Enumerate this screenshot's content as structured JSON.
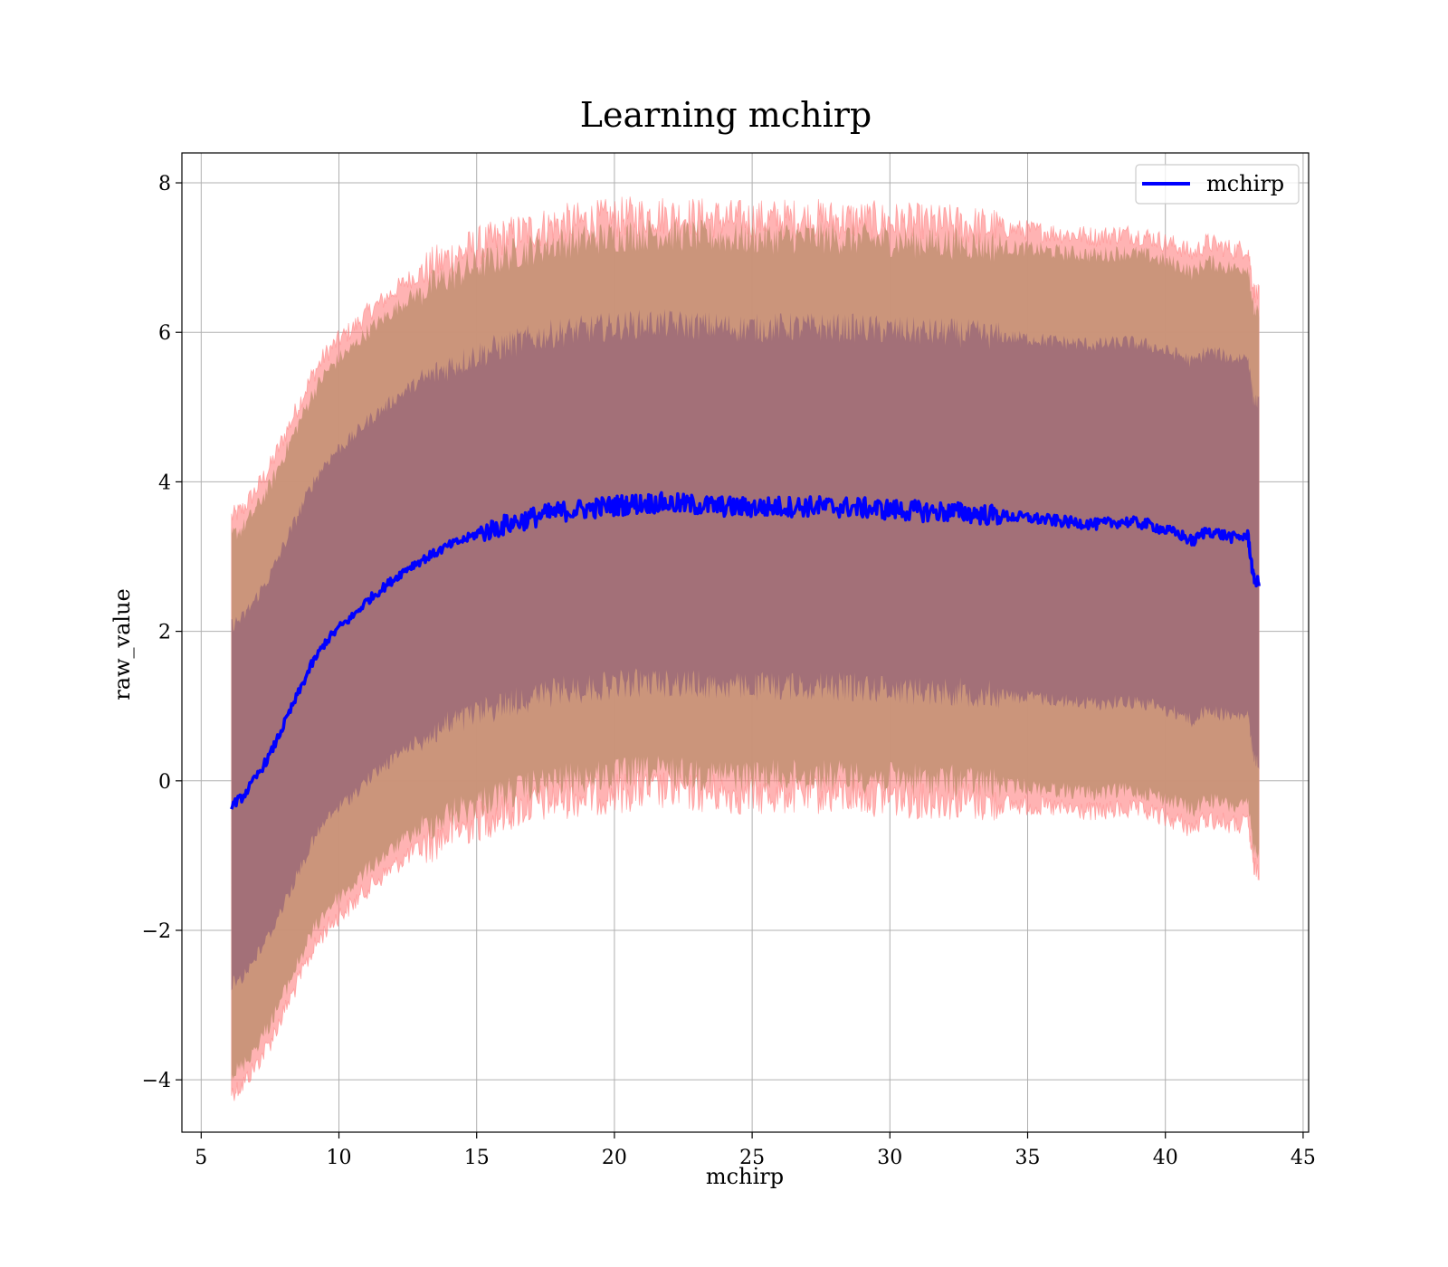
{
  "chart_data": {
    "type": "line",
    "title": "Learning mchirp",
    "xlabel": "mchirp",
    "ylabel": "raw_value",
    "xlim": [
      4.3,
      45.2
    ],
    "ylim": [
      -4.7,
      8.4
    ],
    "xticks": [
      5,
      10,
      15,
      20,
      25,
      30,
      35,
      40,
      45
    ],
    "yticks": [
      -4,
      -2,
      0,
      2,
      4,
      6,
      8
    ],
    "ytick_labels": [
      "−4",
      "−2",
      "0",
      "2",
      "4",
      "6",
      "8"
    ],
    "grid": true,
    "legend_position": "top-right",
    "line_color": "#0000ff",
    "band_colors": {
      "outer": "#ff8080",
      "middle": "#c89478",
      "inner": "#a06e78"
    },
    "series": [
      {
        "name": "mchirp",
        "x": [
          6.1,
          6.5,
          7.0,
          7.5,
          8.0,
          8.5,
          9.0,
          9.5,
          10.0,
          10.5,
          11.0,
          11.5,
          12.0,
          12.5,
          13.0,
          13.5,
          14.0,
          14.5,
          15.0,
          15.5,
          16.0,
          16.5,
          17.0,
          17.5,
          18.0,
          18.5,
          19.0,
          19.5,
          20.0,
          20.5,
          21.0,
          21.5,
          22.0,
          22.5,
          23.0,
          23.5,
          24.0,
          24.5,
          25.0,
          25.5,
          26.0,
          26.5,
          27.0,
          27.5,
          28.0,
          28.5,
          29.0,
          29.5,
          30.0,
          30.5,
          31.0,
          31.5,
          32.0,
          32.5,
          33.0,
          33.5,
          34.0,
          34.5,
          35.0,
          35.5,
          36.0,
          36.5,
          37.0,
          37.5,
          38.0,
          38.5,
          39.0,
          39.5,
          40.0,
          40.5,
          41.0,
          41.5,
          42.0,
          42.5,
          43.0,
          43.2,
          43.4
        ],
        "y": [
          -0.32,
          -0.22,
          0.05,
          0.35,
          0.75,
          1.15,
          1.55,
          1.85,
          2.05,
          2.2,
          2.4,
          2.55,
          2.7,
          2.85,
          2.95,
          3.05,
          3.15,
          3.22,
          3.3,
          3.36,
          3.42,
          3.47,
          3.52,
          3.56,
          3.6,
          3.62,
          3.64,
          3.66,
          3.68,
          3.7,
          3.71,
          3.72,
          3.71,
          3.7,
          3.69,
          3.68,
          3.67,
          3.66,
          3.66,
          3.66,
          3.67,
          3.67,
          3.67,
          3.67,
          3.66,
          3.66,
          3.65,
          3.64,
          3.63,
          3.62,
          3.61,
          3.6,
          3.6,
          3.59,
          3.58,
          3.56,
          3.55,
          3.53,
          3.52,
          3.5,
          3.48,
          3.46,
          3.45,
          3.43,
          3.45,
          3.47,
          3.45,
          3.42,
          3.35,
          3.3,
          3.2,
          3.35,
          3.3,
          3.25,
          3.28,
          2.7,
          2.65
        ],
        "band_inner": [
          2.4,
          2.4,
          2.4,
          2.4,
          2.4,
          2.4,
          2.4,
          2.4,
          2.4,
          2.4,
          2.4,
          2.4,
          2.4,
          2.4,
          2.4,
          2.4,
          2.4,
          2.4,
          2.4,
          2.4,
          2.4,
          2.4,
          2.4,
          2.4,
          2.4,
          2.4,
          2.4,
          2.4,
          2.4,
          2.4,
          2.4,
          2.4,
          2.4,
          2.4,
          2.4,
          2.4,
          2.4,
          2.4,
          2.4,
          2.4,
          2.4,
          2.4,
          2.4,
          2.4,
          2.4,
          2.4,
          2.4,
          2.4,
          2.4,
          2.4,
          2.4,
          2.4,
          2.4,
          2.4,
          2.4,
          2.4,
          2.4,
          2.4,
          2.4,
          2.4,
          2.4,
          2.4,
          2.4,
          2.4,
          2.4,
          2.4,
          2.4,
          2.4,
          2.4,
          2.4,
          2.4,
          2.4,
          2.4,
          2.4,
          2.4,
          2.4,
          2.4
        ],
        "band_middle": [
          3.6,
          3.6,
          3.6,
          3.6,
          3.6,
          3.6,
          3.6,
          3.6,
          3.6,
          3.6,
          3.6,
          3.6,
          3.6,
          3.6,
          3.6,
          3.6,
          3.6,
          3.6,
          3.6,
          3.6,
          3.6,
          3.6,
          3.6,
          3.6,
          3.6,
          3.6,
          3.6,
          3.6,
          3.6,
          3.6,
          3.6,
          3.6,
          3.6,
          3.6,
          3.6,
          3.6,
          3.6,
          3.6,
          3.6,
          3.6,
          3.6,
          3.6,
          3.6,
          3.6,
          3.6,
          3.6,
          3.6,
          3.6,
          3.6,
          3.6,
          3.6,
          3.6,
          3.6,
          3.6,
          3.6,
          3.6,
          3.6,
          3.6,
          3.6,
          3.6,
          3.6,
          3.6,
          3.6,
          3.6,
          3.6,
          3.6,
          3.6,
          3.6,
          3.6,
          3.6,
          3.6,
          3.6,
          3.6,
          3.6,
          3.6,
          3.6,
          3.6
        ],
        "band_outer": [
          3.85,
          3.85,
          3.85,
          3.85,
          3.85,
          3.85,
          3.85,
          3.85,
          3.85,
          3.85,
          3.85,
          3.85,
          3.85,
          3.85,
          3.85,
          3.85,
          3.85,
          3.85,
          3.85,
          3.85,
          3.85,
          3.85,
          3.85,
          3.85,
          3.85,
          3.85,
          3.85,
          3.85,
          3.85,
          3.85,
          3.85,
          3.85,
          3.85,
          3.85,
          3.85,
          3.85,
          3.85,
          3.85,
          3.85,
          3.85,
          3.85,
          3.85,
          3.85,
          3.85,
          3.85,
          3.85,
          3.85,
          3.85,
          3.85,
          3.85,
          3.85,
          3.85,
          3.85,
          3.85,
          3.85,
          3.85,
          3.85,
          3.85,
          3.85,
          3.85,
          3.85,
          3.85,
          3.85,
          3.85,
          3.85,
          3.85,
          3.85,
          3.85,
          3.85,
          3.85,
          3.85,
          3.85,
          3.85,
          3.85,
          3.85,
          3.85,
          3.85
        ]
      }
    ]
  }
}
